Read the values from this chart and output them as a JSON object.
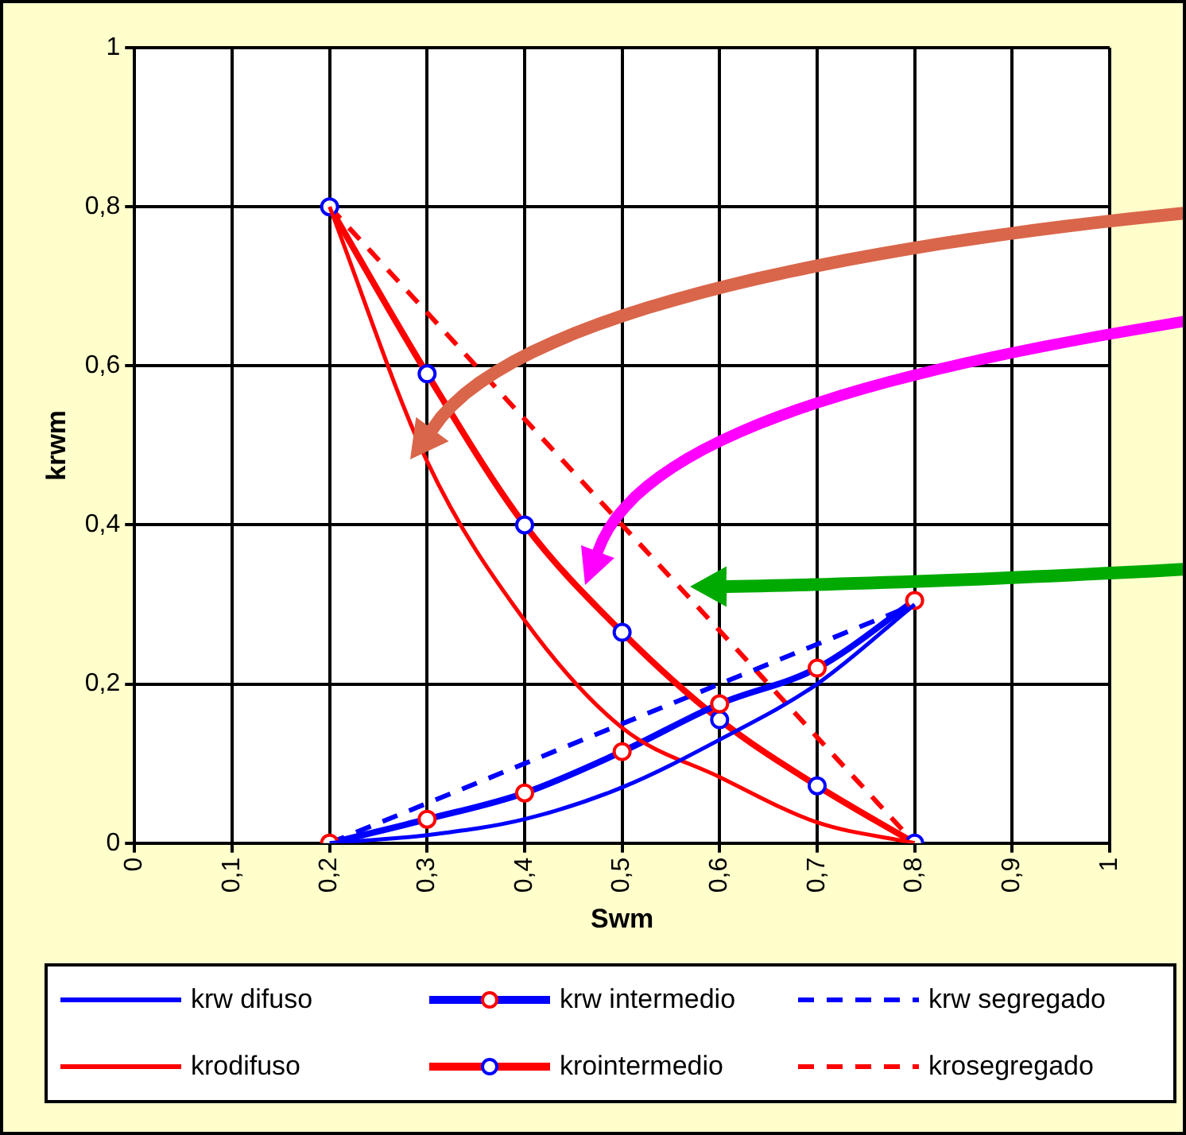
{
  "chart_data": {
    "type": "line",
    "xlabel": "Swm",
    "ylabel": "krwm",
    "x": [
      0.2,
      0.3,
      0.4,
      0.5,
      0.6,
      0.7,
      0.8
    ],
    "series": [
      {
        "name": "krw difuso",
        "color": "#0000ff",
        "values": [
          0,
          0.01,
          0.03,
          0.07,
          0.13,
          0.2,
          0.3
        ],
        "line_style": "solid",
        "marker": "none"
      },
      {
        "name": "krodifuso",
        "color": "#ff0000",
        "values": [
          0.8,
          0.48,
          0.28,
          0.145,
          0.083,
          0.026,
          0
        ],
        "line_style": "solid",
        "marker": "none"
      },
      {
        "name": "krw intermedio",
        "color": "#0000ff",
        "values": [
          0,
          0.03,
          0.063,
          0.115,
          0.175,
          0.22,
          0.305
        ],
        "line_style": "solid",
        "marker": "circle"
      },
      {
        "name": "krointermedio",
        "color": "#ff0000",
        "values": [
          0.8,
          0.59,
          0.4,
          0.265,
          0.155,
          0.072,
          0
        ],
        "line_style": "solid",
        "marker": "circle"
      },
      {
        "name": "krw segregado",
        "color": "#0000ff",
        "values": [
          0,
          0.05,
          0.1,
          0.15,
          0.2,
          0.25,
          0.3
        ],
        "line_style": "dashed",
        "marker": "none"
      },
      {
        "name": "krosegregado",
        "color": "#ff0000",
        "values": [
          0.8,
          0.667,
          0.533,
          0.4,
          0.267,
          0.133,
          0
        ],
        "line_style": "dashed",
        "marker": "none"
      }
    ],
    "xlim": [
      0,
      1
    ],
    "xticks": [
      0,
      {
        "value": 0.1,
        "label": "0,1"
      },
      {
        "value": 0.2,
        "label": "0,2"
      },
      {
        "value": 0.3,
        "label": "0,3"
      },
      {
        "value": 0.4,
        "label": "0,4"
      },
      {
        "value": 0.5,
        "label": "0,5"
      },
      {
        "value": 0.6,
        "label": "0,6"
      },
      {
        "value": 0.7,
        "label": "0,7"
      },
      {
        "value": 0.8,
        "label": "0,8"
      },
      {
        "value": 0.9,
        "label": "0,9"
      },
      1
    ],
    "ylim": [
      0,
      1
    ],
    "yticks": [
      0,
      {
        "value": 0.2,
        "label": "0,2"
      },
      {
        "value": 0.4,
        "label": "0,4"
      },
      {
        "value": 0.6,
        "label": "0,6"
      },
      {
        "value": 0.8,
        "label": "0,8"
      },
      1
    ],
    "grid": true,
    "legend": "bottom"
  }
}
